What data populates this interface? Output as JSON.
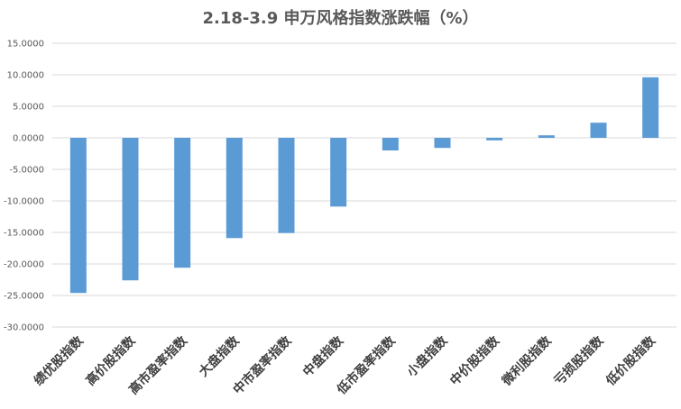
{
  "chart_data": {
    "type": "bar",
    "title": "2.18-3.9 申万风格指数涨跌幅（%）",
    "xlabel": "",
    "ylabel": "",
    "ylim": [
      -30,
      15
    ],
    "ytick_step": 5,
    "grid": true,
    "legend": "none",
    "bar_color": "#5B9BD5",
    "yticks": [
      "15.0000",
      "10.0000",
      "5.0000",
      "0.0000",
      "-5.0000",
      "-10.0000",
      "-15.0000",
      "-20.0000",
      "-25.0000",
      "-30.0000"
    ],
    "categories": [
      "绩优股指数",
      "高价股指数",
      "高市盈率指数",
      "大盘指数",
      "中市盈率指数",
      "中盘指数",
      "低市盈率指数",
      "小盘指数",
      "中价股指数",
      "微利股指数",
      "亏损股指数",
      "低价股指数"
    ],
    "values": [
      -24.6,
      -22.6,
      -20.6,
      -15.9,
      -15.1,
      -10.9,
      -2.0,
      -1.6,
      -0.4,
      0.4,
      2.4,
      9.6
    ]
  }
}
